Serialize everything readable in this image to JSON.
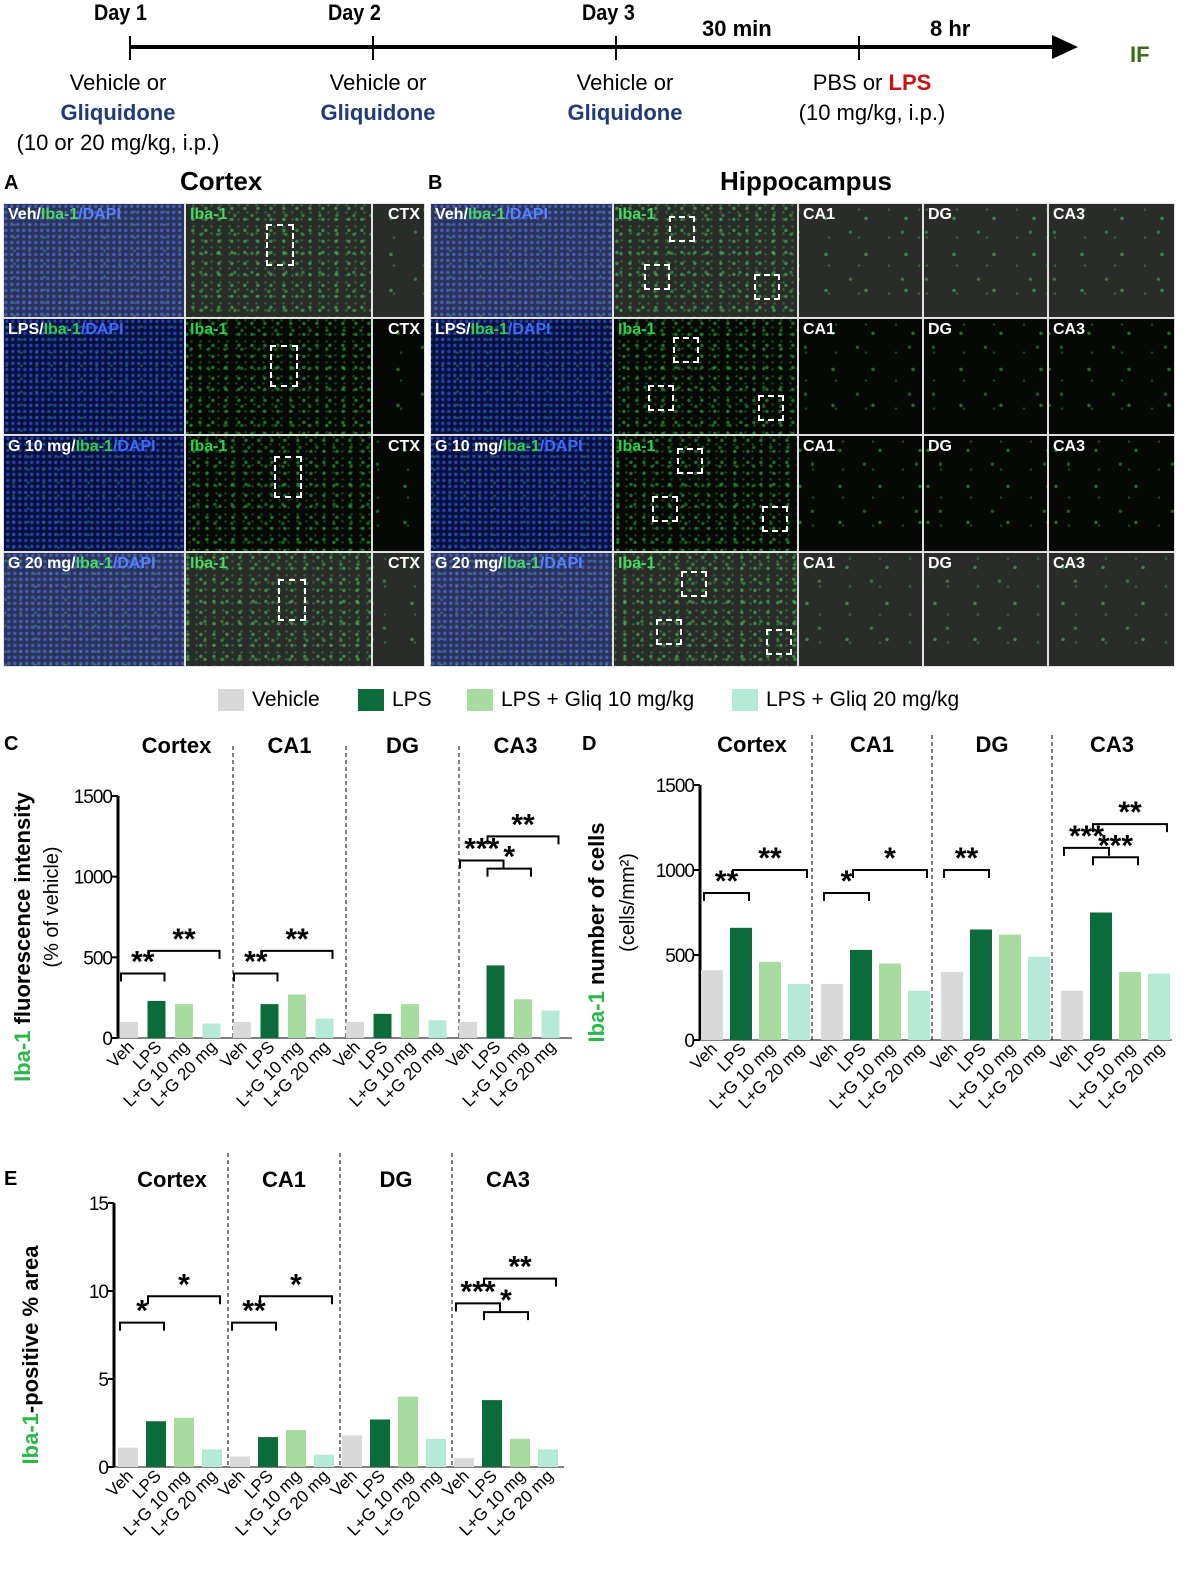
{
  "timeline": {
    "days": [
      "Day 1",
      "Day 2",
      "Day 3"
    ],
    "intervals": [
      "30 min",
      "8 hr"
    ],
    "endpoint": "IF",
    "treatments": [
      {
        "line1": "Vehicle or",
        "drug": "Gliquidone",
        "dose": "(10 or 20 mg/kg, i.p.)"
      },
      {
        "line1": "Vehicle or",
        "drug": "Gliquidone",
        "dose": ""
      },
      {
        "line1": "Vehicle or",
        "drug": "Gliquidone",
        "dose": ""
      }
    ],
    "challenge": {
      "pre": "PBS or ",
      "drug": "LPS",
      "dose": "(10 mg/kg, i.p.)"
    },
    "colors": {
      "gliquidone": "#1f3a7a",
      "lps": "#d01010",
      "endpoint": "#3a6a1a"
    }
  },
  "panelA": {
    "letter": "A",
    "title": "Cortex",
    "stain_label": "Iba-1",
    "region_label": "CTX"
  },
  "panelB": {
    "letter": "B",
    "title": "Hippocampus",
    "stain_label": "Iba-1",
    "regions": [
      "CA1",
      "DG",
      "CA3"
    ]
  },
  "image_rows": [
    {
      "group": "Veh/",
      "iba": "Iba-1",
      "dapi": "/DAPI"
    },
    {
      "group": "LPS/",
      "iba": "Iba-1",
      "dapi": "/DAPI"
    },
    {
      "group": "G 10 mg/",
      "iba": "Iba-1",
      "dapi": "/DAPI"
    },
    {
      "group": "G 20 mg/",
      "iba": "Iba-1",
      "dapi": "/DAPI"
    }
  ],
  "legend": [
    {
      "label": "Vehicle",
      "color": "#d9d9d9"
    },
    {
      "label": "LPS",
      "color": "#0b6b3a"
    },
    {
      "label": "LPS + Gliq 10 mg/kg",
      "color": "#a8dba0"
    },
    {
      "label": "LPS + Gliq 20 mg/kg",
      "color": "#b5ead7"
    }
  ],
  "chart_data": [
    {
      "type": "bar",
      "panel": "C",
      "ylabel_green": "Iba-1",
      "ylabel_rest": " fluorescence intensity",
      "ylabel2": "(% of vehicle)",
      "ylim": [
        0,
        1500
      ],
      "yticks": [
        0,
        500,
        1000,
        1500
      ],
      "groups": [
        "Cortex",
        "CA1",
        "DG",
        "CA3"
      ],
      "categories": [
        "Veh",
        "LPS",
        "L+G 10 mg",
        "L+G 20 mg"
      ],
      "values": [
        [
          100,
          230,
          210,
          90
        ],
        [
          100,
          210,
          270,
          120
        ],
        [
          100,
          150,
          210,
          110
        ],
        [
          100,
          450,
          240,
          170
        ]
      ],
      "significance": [
        {
          "group": 0,
          "from": 0,
          "to": 1,
          "label": "**",
          "y": 400
        },
        {
          "group": 0,
          "from": 1,
          "to": 3,
          "label": "**",
          "y": 540
        },
        {
          "group": 1,
          "from": 0,
          "to": 1,
          "label": "**",
          "y": 400
        },
        {
          "group": 1,
          "from": 1,
          "to": 3,
          "label": "**",
          "y": 540
        },
        {
          "group": 3,
          "from": 0,
          "to": 1,
          "label": "***",
          "y": 1100
        },
        {
          "group": 3,
          "from": 1,
          "to": 2,
          "label": "*",
          "y": 1050
        },
        {
          "group": 3,
          "from": 1,
          "to": 3,
          "label": "**",
          "y": 1250
        }
      ]
    },
    {
      "type": "bar",
      "panel": "D",
      "ylabel_green": "Iba-1",
      "ylabel_rest": " number of cells",
      "ylabel2": "(cells/mm²)",
      "ylim": [
        0,
        1500
      ],
      "yticks": [
        0,
        500,
        1000,
        1500
      ],
      "groups": [
        "Cortex",
        "CA1",
        "DG",
        "CA3"
      ],
      "categories": [
        "Veh",
        "LPS",
        "L+G 10 mg",
        "L+G 20 mg"
      ],
      "values": [
        [
          410,
          660,
          460,
          330
        ],
        [
          330,
          530,
          450,
          290
        ],
        [
          400,
          650,
          620,
          490
        ],
        [
          290,
          750,
          400,
          390
        ]
      ],
      "significance": [
        {
          "group": 0,
          "from": 0,
          "to": 1,
          "label": "**",
          "y": 865
        },
        {
          "group": 0,
          "from": 1,
          "to": 3,
          "label": "**",
          "y": 1000
        },
        {
          "group": 1,
          "from": 0,
          "to": 1,
          "label": "*",
          "y": 865
        },
        {
          "group": 1,
          "from": 1,
          "to": 3,
          "label": "*",
          "y": 1000
        },
        {
          "group": 2,
          "from": 0,
          "to": 1,
          "label": "**",
          "y": 1000
        },
        {
          "group": 3,
          "from": 0,
          "to": 1,
          "label": "***",
          "y": 1130
        },
        {
          "group": 3,
          "from": 1,
          "to": 2,
          "label": "***",
          "y": 1075
        },
        {
          "group": 3,
          "from": 1,
          "to": 3,
          "label": "**",
          "y": 1270
        }
      ]
    },
    {
      "type": "bar",
      "panel": "E",
      "ylabel_green": "Iba-1",
      "ylabel_rest": "-positive % area",
      "ylabel2": "",
      "ylim": [
        0,
        15
      ],
      "yticks": [
        0,
        5,
        10,
        15
      ],
      "groups": [
        "Cortex",
        "CA1",
        "DG",
        "CA3"
      ],
      "categories": [
        "Veh",
        "LPS",
        "L+G 10 mg",
        "L+G 20 mg"
      ],
      "values": [
        [
          1.1,
          2.6,
          2.8,
          1.0
        ],
        [
          0.6,
          1.7,
          2.1,
          0.7
        ],
        [
          1.8,
          2.7,
          4.0,
          1.6
        ],
        [
          0.5,
          3.8,
          1.6,
          1.0
        ]
      ],
      "significance": [
        {
          "group": 0,
          "from": 0,
          "to": 1,
          "label": "*",
          "y": 8.2
        },
        {
          "group": 0,
          "from": 1,
          "to": 3,
          "label": "*",
          "y": 9.7
        },
        {
          "group": 1,
          "from": 0,
          "to": 1,
          "label": "**",
          "y": 8.2
        },
        {
          "group": 1,
          "from": 1,
          "to": 3,
          "label": "*",
          "y": 9.7
        },
        {
          "group": 3,
          "from": 0,
          "to": 1,
          "label": "***",
          "y": 9.3
        },
        {
          "group": 3,
          "from": 1,
          "to": 2,
          "label": "*",
          "y": 8.8
        },
        {
          "group": 3,
          "from": 1,
          "to": 3,
          "label": "**",
          "y": 10.7
        }
      ]
    }
  ]
}
